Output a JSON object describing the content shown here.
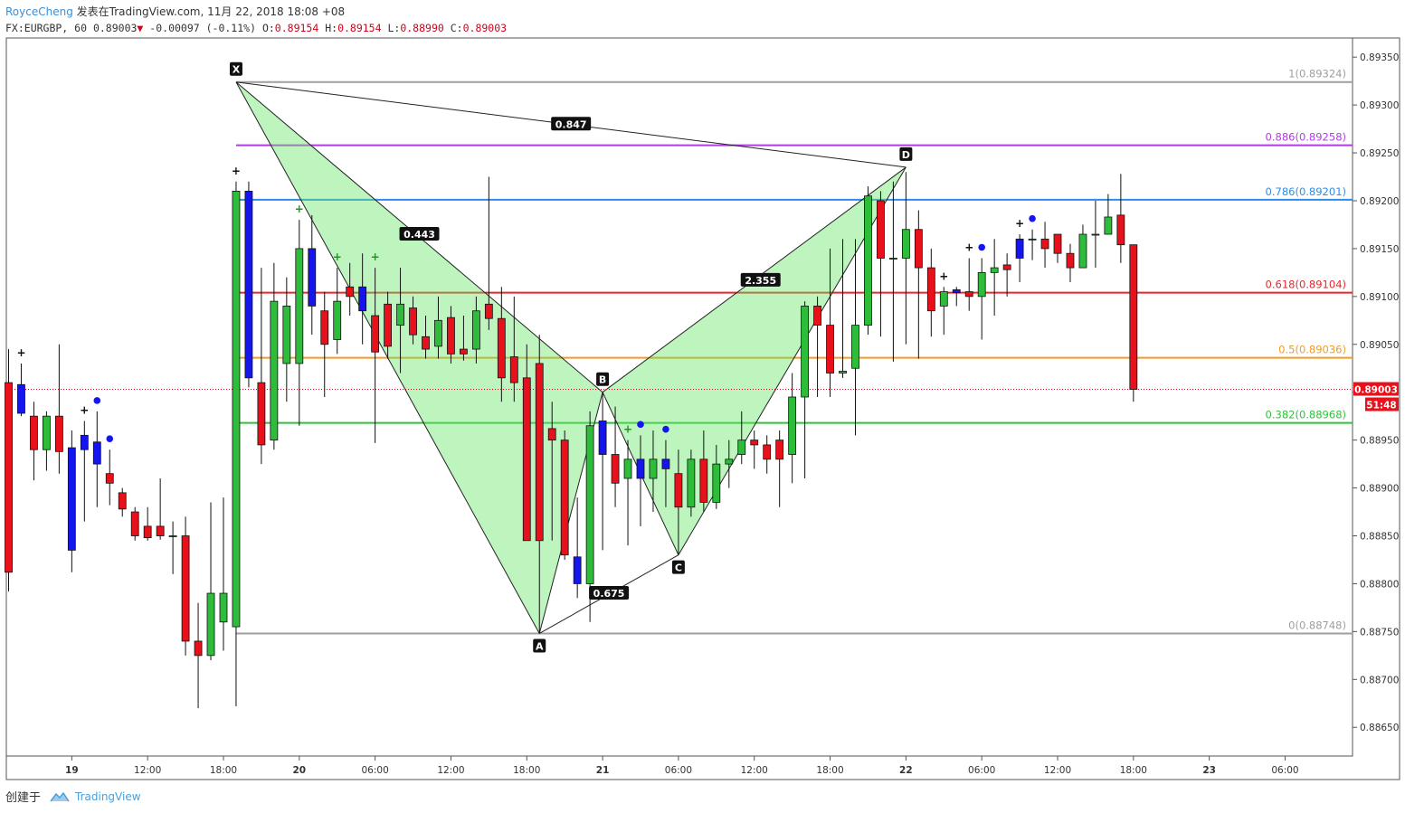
{
  "header": {
    "author": "RoyceCheng",
    "published": "发表在TradingView.com, 11月 22, 2018 18:08 +08",
    "symbol": "FX:EURGBP, 60",
    "last": "0.89003",
    "change": "-0.00097 (-0.11%)",
    "o_label": "O:",
    "o_value": "0.89154",
    "h_label": "H:",
    "h_value": "0.89154",
    "l_label": "L:",
    "l_value": "0.88990",
    "c_label": "C:",
    "c_value": "0.89003"
  },
  "footer": {
    "created": "创建于",
    "brand": "TradingView"
  },
  "chart_data": {
    "type": "candlestick",
    "ylim": [
      0.8862,
      0.8937
    ],
    "y_ticks": [
      "0.89350",
      "0.89300",
      "0.89250",
      "0.89200",
      "0.89150",
      "0.89100",
      "0.89050",
      "0.89000",
      "0.88950",
      "0.88900",
      "0.88850",
      "0.88800",
      "0.88750",
      "0.88700",
      "0.88650"
    ],
    "x_ticks": [
      "19",
      "12:00",
      "18:00",
      "20",
      "06:00",
      "12:00",
      "18:00",
      "21",
      "06:00",
      "12:00",
      "18:00",
      "22",
      "06:00",
      "12:00",
      "18:00",
      "23",
      "06:00"
    ],
    "current_price": "0.89003",
    "countdown": "51:48",
    "fib_levels": [
      {
        "label": "1(0.89324)",
        "value": 0.89324,
        "color": "#9e9e9e"
      },
      {
        "label": "0.886(0.89258)",
        "value": 0.89258,
        "color": "#b23be0"
      },
      {
        "label": "0.786(0.89201)",
        "value": 0.89201,
        "color": "#2f8ce8"
      },
      {
        "label": "0.618(0.89104)",
        "value": 0.89104,
        "color": "#e8262a"
      },
      {
        "label": "0.5(0.89036)",
        "value": 0.89036,
        "color": "#f29b26"
      },
      {
        "label": "0.382(0.88968)",
        "value": 0.88968,
        "color": "#2dc33a"
      },
      {
        "label": "0(0.88748)",
        "value": 0.88748,
        "color": "#9e9e9e"
      }
    ],
    "pattern_points": [
      {
        "label": "X",
        "idx": 18,
        "value": 0.89324
      },
      {
        "label": "A",
        "idx": 42,
        "value": 0.88748
      },
      {
        "label": "B",
        "idx": 47,
        "value": 0.89
      },
      {
        "label": "C",
        "idx": 53,
        "value": 0.8883
      },
      {
        "label": "D",
        "idx": 71,
        "value": 0.89235
      }
    ],
    "ratios": [
      {
        "label": "0.443",
        "idx": 32.5,
        "value": 0.89165
      },
      {
        "label": "0.675",
        "idx": 47.5,
        "value": 0.8879
      },
      {
        "label": "2.355",
        "idx": 59.5,
        "value": 0.89117
      },
      {
        "label": "0.847",
        "idx": 44.5,
        "value": 0.8928
      }
    ],
    "candles": [
      [
        0.8901,
        0.88812,
        0.88792,
        0.89045
      ],
      [
        0.88978,
        0.89008,
        0.88975,
        0.8903
      ],
      [
        0.88975,
        0.8894,
        0.88908,
        0.8899
      ],
      [
        0.8894,
        0.88975,
        0.88918,
        0.8898
      ],
      [
        0.88975,
        0.88938,
        0.88915,
        0.8905
      ],
      [
        0.88942,
        0.88835,
        0.88812,
        0.8896
      ],
      [
        0.8894,
        0.88955,
        0.88865,
        0.8897
      ],
      [
        0.88948,
        0.88925,
        0.8888,
        0.8898
      ],
      [
        0.88915,
        0.88905,
        0.88882,
        0.8894
      ],
      [
        0.88895,
        0.88878,
        0.8887,
        0.889
      ],
      [
        0.88875,
        0.8885,
        0.88845,
        0.8888
      ],
      [
        0.8886,
        0.88848,
        0.88845,
        0.8888
      ],
      [
        0.8886,
        0.8885,
        0.88846,
        0.8891
      ],
      [
        0.8885,
        0.8885,
        0.8881,
        0.88865
      ],
      [
        0.8885,
        0.8874,
        0.88725,
        0.8887
      ],
      [
        0.8874,
        0.88725,
        0.8867,
        0.8878
      ],
      [
        0.88725,
        0.8879,
        0.8872,
        0.88885
      ],
      [
        0.8876,
        0.8879,
        0.8873,
        0.8889
      ],
      [
        0.88755,
        0.8921,
        0.88672,
        0.8922
      ],
      [
        0.8921,
        0.89015,
        0.89005,
        0.8922
      ],
      [
        0.8901,
        0.88945,
        0.88925,
        0.8913
      ],
      [
        0.8895,
        0.89095,
        0.8894,
        0.89135
      ],
      [
        0.8903,
        0.8909,
        0.8899,
        0.8912
      ],
      [
        0.8903,
        0.8915,
        0.88965,
        0.8918
      ],
      [
        0.8915,
        0.8909,
        0.8906,
        0.89185
      ],
      [
        0.89085,
        0.8905,
        0.88995,
        0.89105
      ],
      [
        0.89055,
        0.89095,
        0.8904,
        0.8913
      ],
      [
        0.8911,
        0.891,
        0.8908,
        0.89135
      ],
      [
        0.8911,
        0.89085,
        0.8905,
        0.89145
      ],
      [
        0.8908,
        0.89042,
        0.88947,
        0.8913
      ],
      [
        0.89092,
        0.89048,
        0.89035,
        0.89105
      ],
      [
        0.8907,
        0.89092,
        0.8902,
        0.8913
      ],
      [
        0.89088,
        0.8906,
        0.8905,
        0.891
      ],
      [
        0.89058,
        0.89045,
        0.89035,
        0.8908
      ],
      [
        0.89048,
        0.89075,
        0.89035,
        0.891
      ],
      [
        0.89078,
        0.8904,
        0.8903,
        0.8909
      ],
      [
        0.89045,
        0.8904,
        0.89033,
        0.8908
      ],
      [
        0.89045,
        0.89085,
        0.8903,
        0.891
      ],
      [
        0.89092,
        0.89077,
        0.89065,
        0.89225
      ],
      [
        0.89077,
        0.89015,
        0.8899,
        0.8911
      ],
      [
        0.89037,
        0.8901,
        0.8899,
        0.891
      ],
      [
        0.89015,
        0.88845,
        0.88845,
        0.8905
      ],
      [
        0.8903,
        0.88845,
        0.88748,
        0.8906
      ],
      [
        0.88962,
        0.8895,
        0.88845,
        0.8899
      ],
      [
        0.8895,
        0.8883,
        0.88825,
        0.8896
      ],
      [
        0.88828,
        0.888,
        0.88785,
        0.8889
      ],
      [
        0.888,
        0.88965,
        0.8876,
        0.8898
      ],
      [
        0.8897,
        0.88935,
        0.88835,
        0.89
      ],
      [
        0.88935,
        0.88905,
        0.8888,
        0.88985
      ],
      [
        0.8891,
        0.8893,
        0.8884,
        0.8895
      ],
      [
        0.8893,
        0.8891,
        0.8886,
        0.88955
      ],
      [
        0.8891,
        0.8893,
        0.88875,
        0.8896
      ],
      [
        0.8893,
        0.8892,
        0.8888,
        0.8895
      ],
      [
        0.88915,
        0.8888,
        0.8883,
        0.8894
      ],
      [
        0.8888,
        0.8893,
        0.8887,
        0.8894
      ],
      [
        0.8893,
        0.88885,
        0.88875,
        0.8896
      ],
      [
        0.88885,
        0.88925,
        0.88878,
        0.88945
      ],
      [
        0.88925,
        0.8893,
        0.889,
        0.8895
      ],
      [
        0.88935,
        0.8895,
        0.88925,
        0.8898
      ],
      [
        0.8895,
        0.88945,
        0.8892,
        0.8896
      ],
      [
        0.88945,
        0.8893,
        0.88915,
        0.88955
      ],
      [
        0.8895,
        0.8893,
        0.8888,
        0.8896
      ],
      [
        0.88935,
        0.88995,
        0.88905,
        0.8902
      ],
      [
        0.88995,
        0.8909,
        0.8891,
        0.89095
      ],
      [
        0.8909,
        0.8907,
        0.88995,
        0.891
      ],
      [
        0.8907,
        0.8902,
        0.88995,
        0.8915
      ],
      [
        0.8902,
        0.89022,
        0.89015,
        0.8916
      ],
      [
        0.89025,
        0.8907,
        0.88955,
        0.8916
      ],
      [
        0.8907,
        0.89205,
        0.8906,
        0.89215
      ],
      [
        0.892,
        0.8914,
        0.89058,
        0.8921
      ],
      [
        0.8914,
        0.8914,
        0.89032,
        0.8922
      ],
      [
        0.8914,
        0.8917,
        0.8905,
        0.8923
      ],
      [
        0.8917,
        0.8913,
        0.89035,
        0.8919
      ],
      [
        0.8913,
        0.89085,
        0.89058,
        0.8915
      ],
      [
        0.8909,
        0.89105,
        0.8906,
        0.8911
      ],
      [
        0.89107,
        0.89104,
        0.8909,
        0.8911
      ],
      [
        0.89105,
        0.891,
        0.89085,
        0.8914
      ],
      [
        0.891,
        0.89125,
        0.89055,
        0.8914
      ],
      [
        0.89125,
        0.8913,
        0.8908,
        0.8916
      ],
      [
        0.89133,
        0.89128,
        0.891,
        0.89145
      ],
      [
        0.8914,
        0.8916,
        0.89115,
        0.89165
      ],
      [
        0.8916,
        0.8916,
        0.89138,
        0.8917
      ],
      [
        0.8916,
        0.8915,
        0.8913,
        0.89178
      ],
      [
        0.89165,
        0.89145,
        0.89135,
        0.89165
      ],
      [
        0.89145,
        0.8913,
        0.89115,
        0.89155
      ],
      [
        0.8913,
        0.89165,
        0.8913,
        0.89175
      ],
      [
        0.89165,
        0.89165,
        0.8913,
        0.892
      ],
      [
        0.89165,
        0.89183,
        0.89165,
        0.89207
      ],
      [
        0.89185,
        0.89154,
        0.89135,
        0.89228
      ],
      [
        0.89154,
        0.89003,
        0.8899,
        0.89154
      ]
    ],
    "blue_candles": [
      1,
      5,
      6,
      7,
      19,
      24,
      28,
      45,
      47,
      50,
      52,
      75,
      80
    ],
    "plus_markers": [
      1,
      6,
      18,
      23,
      26,
      29,
      49,
      74,
      76,
      80
    ],
    "dot_markers": [
      7,
      8,
      50,
      52,
      77,
      81
    ]
  }
}
